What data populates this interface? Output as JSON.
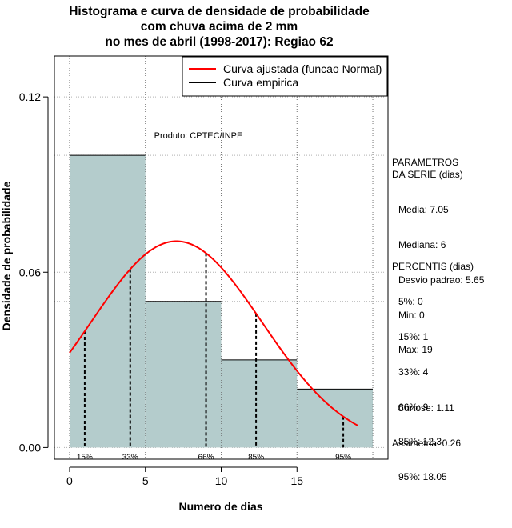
{
  "chart_data": {
    "type": "histogram",
    "title_lines": [
      "Histograma e curva de densidade de probabilidade",
      "com chuva acima de 2 mm",
      "no mes de abril (1998-2017): Regiao 62"
    ],
    "xlabel": "Numero de dias",
    "ylabel": "Densidade de probabilidade",
    "xlim": [
      -1,
      21
    ],
    "ylim": [
      -0.004,
      0.134
    ],
    "x_ticks": [
      0,
      5,
      10,
      15
    ],
    "x_tick_labels": [
      "0",
      "5",
      "10",
      "15"
    ],
    "y_ticks": [
      0.0,
      0.06,
      0.12
    ],
    "y_tick_labels": [
      "0.00",
      "0.06",
      "0.12"
    ],
    "grid_x": [
      0,
      5,
      10,
      15,
      20
    ],
    "grid_y": [
      0.0,
      0.05,
      0.06,
      0.1,
      0.12
    ],
    "bins": [
      {
        "from": 0,
        "to": 5,
        "density": 0.1
      },
      {
        "from": 5,
        "to": 10,
        "density": 0.05
      },
      {
        "from": 10,
        "to": 15,
        "density": 0.03
      },
      {
        "from": 15,
        "to": 20,
        "density": 0.02
      }
    ],
    "normal_fit": {
      "mean": 7.05,
      "sd": 5.65,
      "x_range": [
        0,
        19
      ]
    },
    "percentile_lines": [
      {
        "label": "15%",
        "x": 1
      },
      {
        "label": "33%",
        "x": 4
      },
      {
        "label": "66%",
        "x": 9
      },
      {
        "label": "85%",
        "x": 12.3
      },
      {
        "label": "95%",
        "x": 18.05
      }
    ],
    "legend": [
      {
        "label": "Curva ajustada (funcao Normal)",
        "color": "#ff0000"
      },
      {
        "label": "Curva empirica",
        "color": "#000000"
      }
    ],
    "annotation": "Produto: CPTEC/INPE",
    "colors": {
      "bar_fill": "#b4cccc",
      "curve": "#ff0000",
      "grid": "#b0b0b0",
      "axis": "#000000"
    }
  },
  "side_panel": {
    "params_title": "PARAMETROS\nDA SERIE (dias)",
    "params": [
      "Media: 7.05",
      "Mediana: 6",
      "Desvio padrao: 5.65",
      "Min: 0",
      "Max: 19"
    ],
    "percentis_title": "PERCENTIS (dias)",
    "percentis": [
      "5%: 0",
      "15%: 1",
      "33%: 4",
      "66%: 9",
      "85%: 12.3",
      "95%: 18.05"
    ],
    "shape": [
      "  Curtose: 1.11",
      "Assimetria: 0.26"
    ]
  }
}
